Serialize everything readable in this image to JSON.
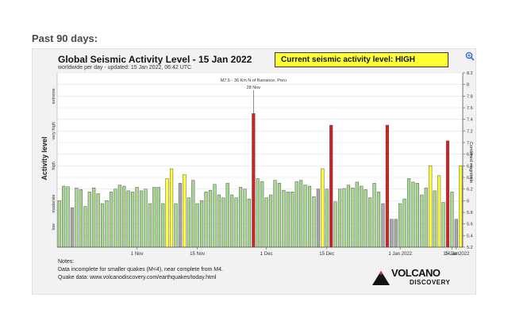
{
  "page": {
    "section_title": "Past 90 days:"
  },
  "header": {
    "title": "Global Seismic Activity Level - 15 Jan 2022",
    "subtitle": "worldwide per day - updated: 15 Jan 2022, 06:42 UTC",
    "status": "Current seismic activity level: HIGH"
  },
  "colors": {
    "normal": "#a5d98c",
    "elevated": "#ffff33",
    "extreme": "#d42020",
    "incomplete": "#a8a8a8"
  },
  "chart_data": {
    "type": "bar",
    "title": "Global Seismic Activity Level - 15 Jan 2022",
    "subtitle": "worldwide per day - updated: 15 Jan 2022, 06:42 UTC",
    "ylabel": "Activity level",
    "y2label": "Combined magnitude",
    "ylim": [
      5.2,
      8.2
    ],
    "right_ticks": [
      5.2,
      5.4,
      5.6,
      5.8,
      6,
      6.2,
      6.4,
      6.6,
      6.8,
      7,
      7.2,
      7.4,
      7.6,
      7.8,
      8,
      8.2
    ],
    "right_tick_labels": [
      "5.2",
      "5.4",
      "5.6",
      "5.8",
      "6",
      "6.2",
      "6.4",
      "6.6",
      "6.8",
      "7",
      "7.2",
      "7.4",
      "7.6",
      "7.8",
      "8",
      "8.2"
    ],
    "left_levels": [
      {
        "label": "low",
        "value": 5.55
      },
      {
        "label": "moderate",
        "value": 5.95
      },
      {
        "label": "high",
        "value": 6.6
      },
      {
        "label": "very high",
        "value": 7.2
      },
      {
        "label": "extreme",
        "value": 7.8
      }
    ],
    "x_tick_labels": [
      {
        "label": "1 Nov",
        "index": 18
      },
      {
        "label": "15 Nov",
        "index": 32
      },
      {
        "label": "1 Dec",
        "index": 48
      },
      {
        "label": "15 Dec",
        "index": 62
      },
      {
        "label": "1 Jan 2022",
        "index": 79
      },
      {
        "label": "14 Jan",
        "index": 91
      },
      {
        "label": "15 Jan 2022",
        "index": 92
      }
    ],
    "annotation": {
      "line1": "M7.5 - 36 Km N of Barrance, Peru",
      "line2": "28 Nov",
      "index": 45
    },
    "values": [
      6.0,
      6.25,
      6.24,
      5.88,
      6.22,
      6.19,
      5.9,
      6.15,
      6.22,
      6.12,
      5.95,
      6.0,
      6.15,
      6.2,
      6.27,
      6.25,
      6.17,
      6.15,
      6.23,
      6.17,
      6.2,
      5.95,
      6.23,
      6.23,
      5.95,
      6.38,
      6.55,
      5.95,
      6.3,
      6.45,
      6.05,
      6.35,
      5.95,
      6.0,
      6.15,
      6.18,
      6.28,
      6.1,
      6.05,
      6.3,
      6.1,
      6.05,
      6.23,
      6.2,
      6.03,
      7.5,
      6.38,
      6.33,
      6.05,
      6.1,
      6.35,
      6.3,
      6.18,
      6.15,
      6.15,
      6.33,
      6.35,
      6.27,
      6.25,
      6.07,
      6.2,
      6.55,
      6.2,
      7.3,
      5.98,
      6.2,
      6.21,
      6.27,
      6.22,
      6.32,
      6.25,
      6.19,
      6.05,
      6.3,
      6.15,
      5.95,
      7.3,
      5.68,
      5.68,
      5.95,
      6.03,
      6.38,
      6.32,
      6.3,
      6.1,
      6.22,
      6.6,
      6.17,
      6.43,
      5.97,
      7.03,
      6.15,
      5.68,
      6.6
    ],
    "levels": [
      "n",
      "n",
      "n",
      "g",
      "n",
      "n",
      "n",
      "n",
      "n",
      "n",
      "n",
      "n",
      "n",
      "n",
      "n",
      "n",
      "n",
      "n",
      "n",
      "n",
      "n",
      "n",
      "n",
      "n",
      "n",
      "y",
      "y",
      "n",
      "g",
      "y",
      "n",
      "n",
      "n",
      "n",
      "n",
      "n",
      "n",
      "n",
      "n",
      "n",
      "n",
      "n",
      "n",
      "n",
      "n",
      "r",
      "n",
      "n",
      "n",
      "n",
      "n",
      "n",
      "n",
      "n",
      "n",
      "n",
      "n",
      "n",
      "n",
      "n",
      "g",
      "y",
      "n",
      "r",
      "n",
      "n",
      "n",
      "n",
      "n",
      "n",
      "n",
      "n",
      "n",
      "n",
      "n",
      "g",
      "r",
      "g",
      "g",
      "n",
      "n",
      "n",
      "n",
      "n",
      "n",
      "n",
      "y",
      "n",
      "y",
      "n",
      "r",
      "n",
      "g",
      "y"
    ]
  },
  "notes": {
    "line1": "Notes:",
    "line2": "Data incomplete for smaller quakes (M<4), near complete from M4.",
    "line3": "Quake data: www.volcanodiscovery.com/earthquakes/today.html"
  },
  "logo": {
    "line1": "VOLCANO",
    "line2": "DISCOVERY"
  },
  "icons": {
    "zoom": "magnifier-plus-icon"
  }
}
